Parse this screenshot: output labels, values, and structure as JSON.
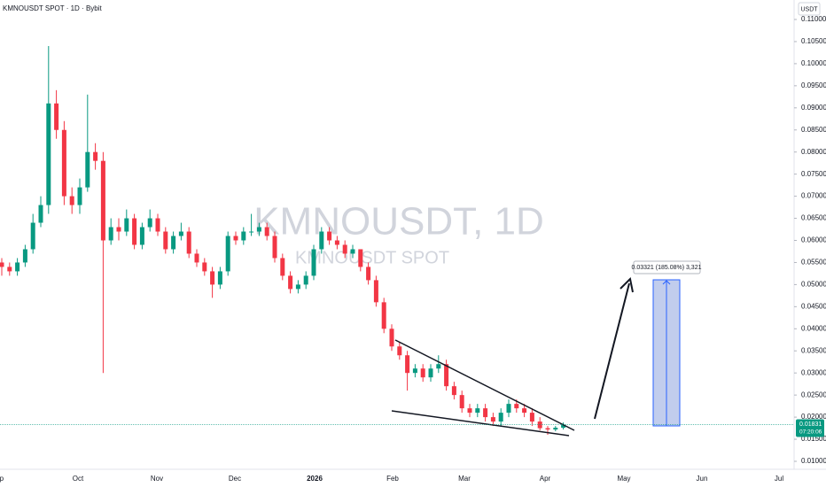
{
  "chart_data": {
    "type": "candlestick",
    "title": "KMNOUSDT SPOT · 1D · Bybit",
    "watermark": "KMNOUSDT, 1D",
    "watermark_sub": "KMNOUSDT SPOT",
    "currency": "USDT",
    "measure_label": "0.03321 (185.08%) 3,321",
    "last_price": {
      "value": 0.01831,
      "label": "0.01831"
    },
    "countdown": "07:20:06",
    "up_color": "#089981",
    "down_color": "#f23645",
    "x_labels": [
      "Sep",
      "Oct",
      "Nov",
      "Dec",
      "2026",
      "Feb",
      "Mar",
      "Apr",
      "May",
      "Jun",
      "Jul"
    ],
    "open": [
      0.055,
      0.054,
      0.053,
      0.055,
      0.058,
      0.064,
      0.068,
      0.091,
      0.085,
      0.07,
      0.068,
      0.072,
      0.08,
      0.078,
      0.06,
      0.063,
      0.062,
      0.065,
      0.059,
      0.063,
      0.065,
      0.062,
      0.058,
      0.061,
      0.062,
      0.057,
      0.055,
      0.053,
      0.05,
      0.053,
      0.061,
      0.06,
      0.062,
      0.062,
      0.063,
      0.061,
      0.056,
      0.052,
      0.049,
      0.05,
      0.052,
      0.058,
      0.062,
      0.06,
      0.059,
      0.057,
      0.058,
      0.054,
      0.051,
      0.046,
      0.04,
      0.036,
      0.034,
      0.03,
      0.031,
      0.029,
      0.031,
      0.032,
      0.027,
      0.025,
      0.022,
      0.021,
      0.022,
      0.02,
      0.019,
      0.021,
      0.023,
      0.022,
      0.021,
      0.019,
      0.0175,
      0.0172,
      0.0176
    ],
    "high": [
      0.056,
      0.055,
      0.056,
      0.059,
      0.066,
      0.07,
      0.104,
      0.094,
      0.087,
      0.072,
      0.074,
      0.093,
      0.082,
      0.08,
      0.065,
      0.065,
      0.067,
      0.066,
      0.064,
      0.067,
      0.066,
      0.063,
      0.062,
      0.064,
      0.063,
      0.058,
      0.056,
      0.054,
      0.054,
      0.062,
      0.062,
      0.063,
      0.066,
      0.064,
      0.064,
      0.062,
      0.057,
      0.053,
      0.051,
      0.053,
      0.059,
      0.063,
      0.063,
      0.061,
      0.06,
      0.059,
      0.058,
      0.055,
      0.052,
      0.047,
      0.041,
      0.037,
      0.035,
      0.032,
      0.032,
      0.032,
      0.034,
      0.033,
      0.028,
      0.026,
      0.023,
      0.023,
      0.023,
      0.021,
      0.022,
      0.024,
      0.024,
      0.023,
      0.022,
      0.02,
      0.018,
      0.018,
      0.0188
    ],
    "low": [
      0.052,
      0.052,
      0.052,
      0.054,
      0.057,
      0.063,
      0.066,
      0.083,
      0.068,
      0.066,
      0.066,
      0.071,
      0.076,
      0.03,
      0.059,
      0.06,
      0.061,
      0.058,
      0.058,
      0.062,
      0.061,
      0.057,
      0.057,
      0.06,
      0.056,
      0.054,
      0.052,
      0.047,
      0.049,
      0.052,
      0.059,
      0.059,
      0.061,
      0.061,
      0.06,
      0.055,
      0.051,
      0.048,
      0.048,
      0.049,
      0.051,
      0.057,
      0.059,
      0.058,
      0.056,
      0.056,
      0.053,
      0.05,
      0.045,
      0.039,
      0.035,
      0.033,
      0.026,
      0.029,
      0.028,
      0.028,
      0.03,
      0.026,
      0.024,
      0.021,
      0.02,
      0.02,
      0.019,
      0.018,
      0.018,
      0.02,
      0.021,
      0.02,
      0.018,
      0.017,
      0.016,
      0.0168,
      0.0172
    ],
    "close": [
      0.054,
      0.053,
      0.055,
      0.058,
      0.064,
      0.068,
      0.091,
      0.085,
      0.07,
      0.068,
      0.072,
      0.08,
      0.078,
      0.06,
      0.063,
      0.062,
      0.065,
      0.059,
      0.063,
      0.065,
      0.062,
      0.058,
      0.061,
      0.062,
      0.057,
      0.055,
      0.053,
      0.05,
      0.053,
      0.061,
      0.06,
      0.062,
      0.062,
      0.063,
      0.061,
      0.056,
      0.052,
      0.049,
      0.05,
      0.052,
      0.058,
      0.062,
      0.06,
      0.059,
      0.057,
      0.058,
      0.054,
      0.051,
      0.046,
      0.04,
      0.036,
      0.034,
      0.03,
      0.031,
      0.029,
      0.031,
      0.032,
      0.027,
      0.025,
      0.022,
      0.021,
      0.022,
      0.02,
      0.019,
      0.021,
      0.023,
      0.022,
      0.021,
      0.019,
      0.0175,
      0.0172,
      0.0176,
      0.0183
    ],
    "ylim": [
      0.01,
      0.11
    ],
    "yticks": [
      {
        "value": 0.11,
        "label": "0.11000"
      },
      {
        "value": 0.105,
        "label": "0.10500"
      },
      {
        "value": 0.1,
        "label": "0.10000"
      },
      {
        "value": 0.095,
        "label": "0.09500"
      },
      {
        "value": 0.09,
        "label": "0.09000"
      },
      {
        "value": 0.085,
        "label": "0.08500"
      },
      {
        "value": 0.08,
        "label": "0.08000"
      },
      {
        "value": 0.075,
        "label": "0.07500"
      },
      {
        "value": 0.07,
        "label": "0.07000"
      },
      {
        "value": 0.065,
        "label": "0.06500"
      },
      {
        "value": 0.06,
        "label": "0.06000"
      },
      {
        "value": 0.055,
        "label": "0.05500"
      },
      {
        "value": 0.05,
        "label": "0.05000"
      },
      {
        "value": 0.045,
        "label": "0.04500"
      },
      {
        "value": 0.04,
        "label": "0.04000"
      },
      {
        "value": 0.035,
        "label": "0.03500"
      },
      {
        "value": 0.03,
        "label": "0.03000"
      },
      {
        "value": 0.025,
        "label": "0.02500"
      },
      {
        "value": 0.02,
        "label": "0.02000"
      },
      {
        "value": 0.015,
        "label": "0.01500"
      },
      {
        "value": 0.01,
        "label": "0.01000"
      }
    ]
  }
}
